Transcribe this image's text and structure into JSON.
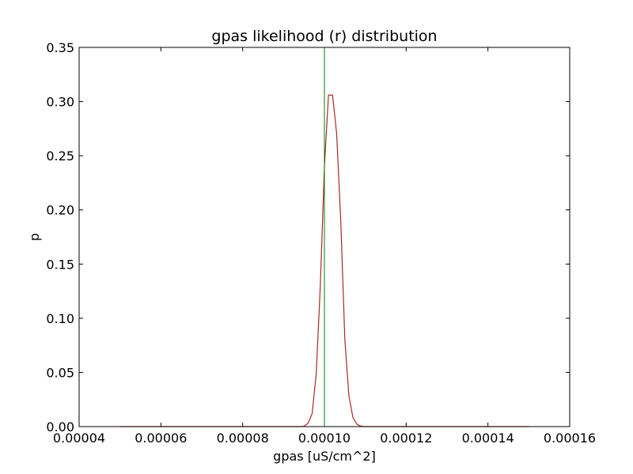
{
  "chart_data": {
    "type": "line",
    "title": "gpas likelihood (r) distribution",
    "xlabel": "gpas [uS/cm^2]",
    "ylabel": "p",
    "xlim": [
      4e-05,
      0.00016
    ],
    "ylim": [
      0,
      0.35
    ],
    "x_ticks": [
      "0.00004",
      "0.00006",
      "0.00008",
      "0.00010",
      "0.00012",
      "0.00014",
      "0.00016"
    ],
    "y_ticks": [
      "0.00",
      "0.05",
      "0.10",
      "0.15",
      "0.20",
      "0.25",
      "0.30",
      "0.35"
    ],
    "grid": false,
    "series": [
      {
        "color": "#a52a2a",
        "x": [
          5e-05,
          9.4e-05,
          9.5e-05,
          9.6e-05,
          9.7e-05,
          9.8e-05,
          9.9e-05,
          0.0001,
          0.000101,
          0.000102,
          0.000103,
          0.000104,
          0.000105,
          0.000106,
          0.000107,
          0.000108,
          0.000109,
          0.00011,
          0.000111,
          0.00015
        ],
        "y": [
          0,
          0,
          0.0003,
          0.003,
          0.012,
          0.049,
          0.13,
          0.24,
          0.306,
          0.306,
          0.27,
          0.19,
          0.08,
          0.028,
          0.008,
          0.002,
          0.0003,
          0,
          0,
          0
        ]
      }
    ],
    "vline": {
      "x": 0.0001,
      "color": "#008000"
    }
  }
}
